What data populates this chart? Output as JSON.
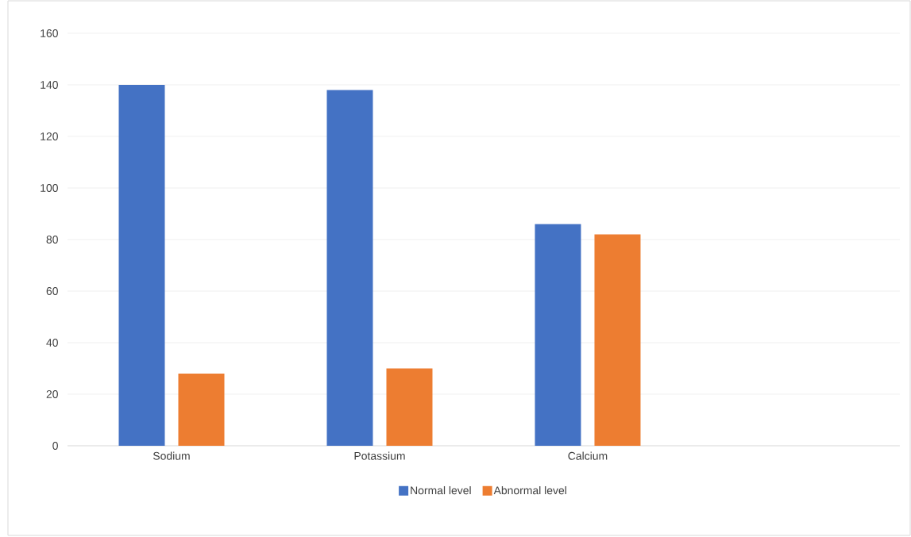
{
  "chart_data": {
    "type": "bar",
    "categories": [
      "Sodium",
      "Potassium",
      "Calcium",
      null
    ],
    "series": [
      {
        "name": "Normal level",
        "color": "#4472c4",
        "values": [
          140,
          138,
          86,
          null
        ]
      },
      {
        "name": "Abnormal level",
        "color": "#ed7d31",
        "values": [
          28,
          30,
          82,
          null
        ]
      }
    ],
    "ylim": [
      0,
      160
    ],
    "yticks": [
      0,
      20,
      40,
      60,
      80,
      100,
      120,
      140,
      160
    ],
    "grid": "y",
    "legend": "bottom"
  }
}
